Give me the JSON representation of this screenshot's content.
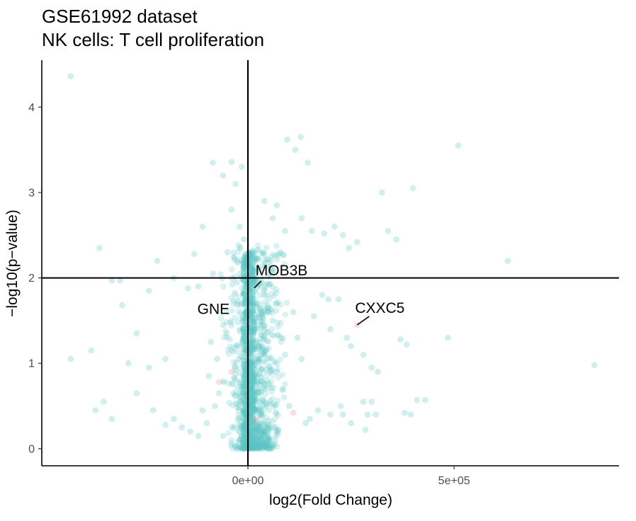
{
  "chart_data": {
    "type": "scatter",
    "title": "GSE61992 dataset",
    "subtitle": "NK cells: T cell proliferation",
    "xlabel": "log2(Fold Change)",
    "ylabel": "−log10(p−value)",
    "xlim": [
      -500000,
      900000
    ],
    "ylim": [
      -0.2,
      4.55
    ],
    "x_ticks": [
      {
        "value": 0,
        "label": "0e+00"
      },
      {
        "value": 500000,
        "label": "5e+05"
      }
    ],
    "y_ticks": [
      {
        "value": 0,
        "label": "0"
      },
      {
        "value": 1,
        "label": "1"
      },
      {
        "value": 2,
        "label": "2"
      },
      {
        "value": 3,
        "label": "3"
      },
      {
        "value": 4,
        "label": "4"
      }
    ],
    "vline_x": 0,
    "hline_y": 2,
    "grid": false,
    "colors": {
      "not_significant": "#5bc4c6",
      "significant": "#f4a3a0",
      "reference_lines": "#000000"
    },
    "series": [
      {
        "points": [
          [
            -430000,
            4.36
          ],
          [
            -40000,
            3.36
          ],
          [
            -85000,
            3.35
          ],
          [
            -15000,
            3.3
          ],
          [
            -60000,
            3.2
          ],
          [
            -30000,
            3.1
          ],
          [
            95000,
            3.62
          ],
          [
            128000,
            3.65
          ],
          [
            145000,
            3.35
          ],
          [
            115000,
            3.5
          ],
          [
            70000,
            2.85
          ],
          [
            40000,
            2.9
          ],
          [
            -110000,
            2.6
          ],
          [
            -40000,
            2.8
          ],
          [
            60000,
            2.7
          ],
          [
            90000,
            2.55
          ],
          [
            130000,
            2.7
          ],
          [
            155000,
            2.55
          ],
          [
            185000,
            2.52
          ],
          [
            210000,
            2.6
          ],
          [
            230000,
            2.5
          ],
          [
            245000,
            2.35
          ],
          [
            265000,
            2.42
          ],
          [
            -360000,
            2.35
          ],
          [
            -220000,
            2.2
          ],
          [
            -130000,
            2.28
          ],
          [
            -20000,
            2.6
          ],
          [
            -10000,
            2.45
          ],
          [
            -50000,
            2.3
          ],
          [
            -85000,
            2.05
          ],
          [
            -180000,
            2.0
          ],
          [
            -240000,
            1.85
          ],
          [
            -145000,
            1.88
          ],
          [
            -120000,
            1.9
          ],
          [
            -330000,
            1.97
          ],
          [
            -310000,
            1.97
          ],
          [
            -305000,
            1.68
          ],
          [
            -270000,
            1.35
          ],
          [
            510000,
            3.55
          ],
          [
            325000,
            3.0
          ],
          [
            400000,
            3.05
          ],
          [
            340000,
            2.55
          ],
          [
            360000,
            2.45
          ],
          [
            630000,
            2.2
          ],
          [
            220000,
            1.75
          ],
          [
            195000,
            1.75
          ],
          [
            180000,
            1.8
          ],
          [
            200000,
            1.4
          ],
          [
            160000,
            1.55
          ],
          [
            240000,
            1.3
          ],
          [
            250000,
            1.2
          ],
          [
            280000,
            1.1
          ],
          [
            300000,
            0.95
          ],
          [
            315000,
            0.9
          ],
          [
            370000,
            1.28
          ],
          [
            385000,
            1.22
          ],
          [
            485000,
            1.3
          ],
          [
            840000,
            0.98
          ],
          [
            -430000,
            1.05
          ],
          [
            -380000,
            1.15
          ],
          [
            -290000,
            1.0
          ],
          [
            -240000,
            0.95
          ],
          [
            -200000,
            1.05
          ],
          [
            -350000,
            0.55
          ],
          [
            -330000,
            0.35
          ],
          [
            -370000,
            0.45
          ],
          [
            -270000,
            0.65
          ],
          [
            -230000,
            0.45
          ],
          [
            -200000,
            0.28
          ],
          [
            -180000,
            0.35
          ],
          [
            -160000,
            0.25
          ],
          [
            -140000,
            0.2
          ],
          [
            150000,
            0.35
          ],
          [
            170000,
            0.45
          ],
          [
            200000,
            0.4
          ],
          [
            230000,
            0.4
          ],
          [
            250000,
            0.3
          ],
          [
            290000,
            0.4
          ],
          [
            310000,
            0.4
          ],
          [
            380000,
            0.42
          ],
          [
            395000,
            0.4
          ],
          [
            410000,
            0.57
          ],
          [
            430000,
            0.57
          ],
          [
            285000,
            0.22
          ],
          [
            225000,
            0.5
          ],
          [
            280000,
            0.55
          ],
          [
            300000,
            0.55
          ],
          [
            -60000,
            1.45
          ],
          [
            -90000,
            1.25
          ],
          [
            -75000,
            1.05
          ],
          [
            -95000,
            0.85
          ],
          [
            -70000,
            0.65
          ],
          [
            60000,
            1.5
          ],
          [
            80000,
            1.3
          ],
          [
            90000,
            1.1
          ],
          [
            70000,
            0.9
          ],
          [
            85000,
            0.7
          ],
          [
            110000,
            1.6
          ],
          [
            120000,
            1.3
          ],
          [
            130000,
            1.05
          ],
          [
            100000,
            0.5
          ],
          [
            140000,
            0.3
          ],
          [
            -110000,
            0.45
          ],
          [
            -100000,
            0.3
          ],
          [
            -120000,
            0.15
          ],
          [
            -80000,
            0.5
          ],
          [
            -60000,
            0.15
          ],
          [
            40000,
            1.8
          ],
          [
            35000,
            1.2
          ],
          [
            45000,
            0.8
          ],
          [
            30000,
            0.4
          ],
          [
            50000,
            0.2
          ]
        ]
      }
    ],
    "annotations": [
      {
        "label": "MOB3B",
        "x": 15000,
        "y": 1.88
      },
      {
        "label": "GNE",
        "x": -5000,
        "y": 1.72
      },
      {
        "label": "CXXC5",
        "x": 265000,
        "y": 1.45
      }
    ]
  }
}
